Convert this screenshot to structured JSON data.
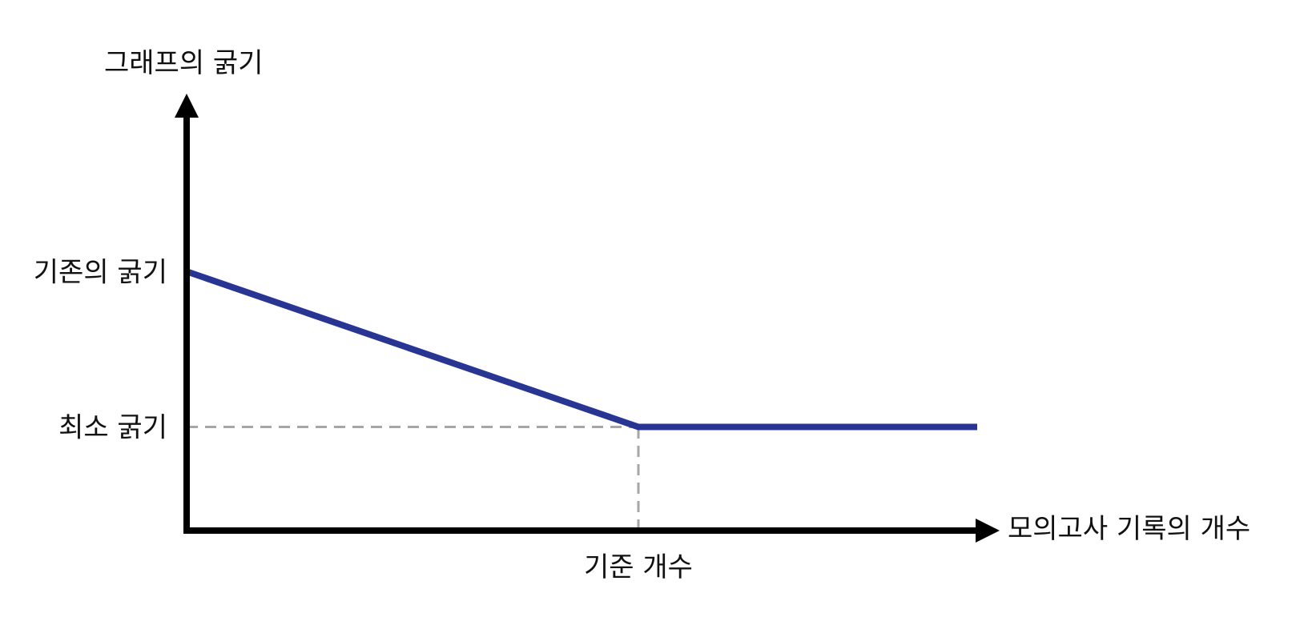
{
  "chart_data": {
    "type": "line",
    "title": "",
    "ylabel": "그래프의 굵기",
    "xlabel": "모의고사 기록의 개수",
    "xticks": [
      {
        "label": "기준 개수",
        "x": 1
      }
    ],
    "yticks": [
      {
        "label": "기존의 굵기",
        "y": 2.5
      },
      {
        "label": "최소 굵기",
        "y": 1
      }
    ],
    "xlim": [
      0,
      1.75
    ],
    "ylim": [
      0,
      4
    ],
    "grid": false,
    "series": [
      {
        "x": [
          0,
          1,
          1.75
        ],
        "y": [
          2.5,
          1,
          1
        ]
      }
    ],
    "guides": [
      {
        "kind": "horizontal",
        "y": 1,
        "from_x": 0,
        "to_x": 1
      },
      {
        "kind": "vertical",
        "x": 1,
        "from_y": 0,
        "to_y": 1
      }
    ],
    "colors": {
      "line": "#283593",
      "axis": "#000000",
      "guide": "#a6a6a6",
      "text": "#111111"
    }
  }
}
